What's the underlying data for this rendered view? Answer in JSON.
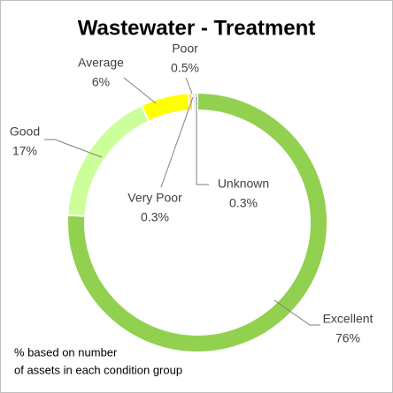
{
  "chart_data": {
    "type": "donut",
    "title": "Wastewater - Treatment",
    "categories": [
      "Excellent",
      "Good",
      "Average",
      "Poor",
      "Very Poor",
      "Unknown"
    ],
    "values": [
      76,
      17,
      6,
      0.5,
      0.3,
      0.3
    ],
    "value_labels": [
      "76%",
      "17%",
      "6%",
      "0.5%",
      "0.3%",
      "0.3%"
    ],
    "colors": [
      "#92d050",
      "#ccff99",
      "#ffff00",
      "#ffd966",
      "#c9c9c9",
      "#a6a6a6"
    ],
    "note": [
      "% based on number",
      "of assets in each condition group"
    ]
  }
}
